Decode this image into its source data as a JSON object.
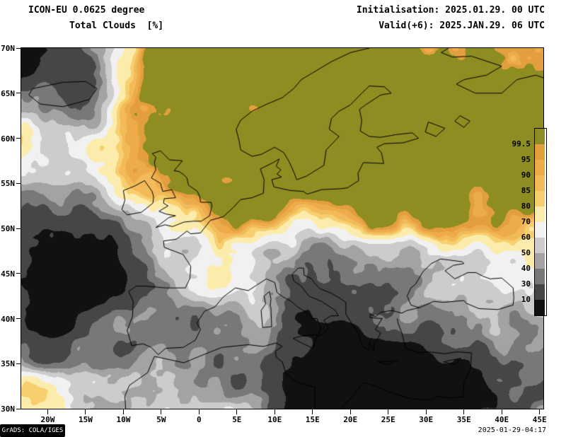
{
  "header": {
    "model_label": "ICON-EU 0.0625 degree",
    "variable_label": "Total Clouds  [%]",
    "initialisation_label": "Initialisation: 2025.01.29. 00 UTC",
    "valid_label": "Valid(+6): 2025.JAN.29. 06 UTC"
  },
  "map": {
    "lat_tick_labels": [
      "70N",
      "65N",
      "60N",
      "55N",
      "50N",
      "45N",
      "40N",
      "35N",
      "30N"
    ],
    "lon_tick_labels": [
      "20W",
      "15W",
      "10W",
      "5W",
      "0",
      "5E",
      "10E",
      "15E",
      "20E",
      "25E",
      "30E",
      "35E",
      "40E",
      "45E"
    ],
    "coastline_color": "#000000"
  },
  "colorbar": {
    "boundary_labels": [
      "99.5",
      "95",
      "90",
      "85",
      "80",
      "70",
      "60",
      "50",
      "40",
      "30",
      "10"
    ],
    "colors_top_to_bottom": [
      "#8d8d21",
      "#e39f3d",
      "#edab4a",
      "#f2ba58",
      "#f7cf6e",
      "#fcecac",
      "#f1f1f1",
      "#cccccc",
      "#a3a3a3",
      "#787878",
      "#464646",
      "#111111"
    ]
  },
  "footer": {
    "credit": "GrADS: COLA/IGES",
    "timestamp": "2025-01-29-04:17"
  },
  "chart_data": {
    "type": "heatmap",
    "title": "Total Clouds [%]",
    "model": "ICON-EU 0.0625 degree",
    "initialisation": "2025.01.29. 00 UTC",
    "valid": "2025.JAN.29. 06 UTC",
    "lon_range_deg": [
      -23.5,
      45.5
    ],
    "lat_range_deg": [
      30,
      70
    ],
    "unit": "%",
    "scale_boundaries_percent": [
      10,
      30,
      40,
      50,
      60,
      70,
      80,
      85,
      90,
      95,
      99.5
    ],
    "legend_position": "right",
    "grid": false
  }
}
